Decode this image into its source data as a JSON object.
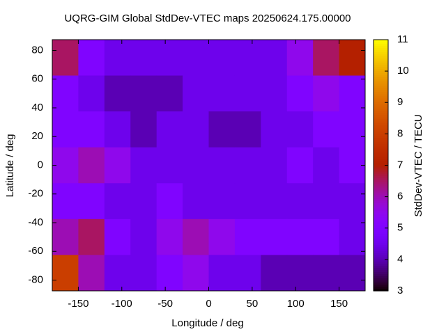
{
  "chart_data": {
    "type": "heatmap",
    "title": "UQRG-GIM Global StdDev-VTEC maps 20250624.175.00000",
    "x_label": "Longitude / deg",
    "y_label": "Latitude / deg",
    "colorbar_label": "StdDev-VTEC / TECU",
    "x": [
      -165,
      -135,
      -105,
      -75,
      -45,
      -15,
      15,
      45,
      75,
      105,
      135,
      165
    ],
    "y": [
      75,
      50,
      25,
      0,
      -25,
      -50,
      -75
    ],
    "z": [
      [
        6.5,
        5,
        4.5,
        4.5,
        4.5,
        4.5,
        4.5,
        4.5,
        4.5,
        5.5,
        6.5,
        7
      ],
      [
        5,
        4.5,
        4,
        4,
        4,
        4.5,
        4.5,
        4.5,
        4.5,
        5,
        5.5,
        5
      ],
      [
        5,
        5,
        4.5,
        4,
        4.5,
        4.5,
        4,
        4,
        4.5,
        4.5,
        5,
        5
      ],
      [
        5.5,
        6,
        5.5,
        4.5,
        4.5,
        4.5,
        4.5,
        4.5,
        4.5,
        5,
        4.5,
        5
      ],
      [
        5,
        5,
        4.5,
        4.5,
        5,
        4.5,
        4.5,
        4.5,
        4.5,
        4.5,
        4.5,
        4.5
      ],
      [
        6,
        6.5,
        5,
        4.5,
        5.5,
        6,
        5.5,
        5,
        5,
        5,
        5,
        4.5
      ],
      [
        8,
        6,
        4.5,
        4.5,
        5,
        5.5,
        4.5,
        4.5,
        4,
        4,
        4,
        4
      ]
    ],
    "xlim": [
      -180,
      180
    ],
    "ylim": [
      -87.5,
      87.5
    ],
    "xticks": [
      -150,
      -100,
      -50,
      0,
      50,
      100,
      150
    ],
    "yticks": [
      -80,
      -60,
      -40,
      -20,
      0,
      20,
      40,
      60,
      80
    ],
    "cblim": [
      3,
      11
    ],
    "cbticks": [
      3,
      4,
      5,
      6,
      7,
      8,
      9,
      10,
      11
    ],
    "palette": "gnuplot"
  }
}
